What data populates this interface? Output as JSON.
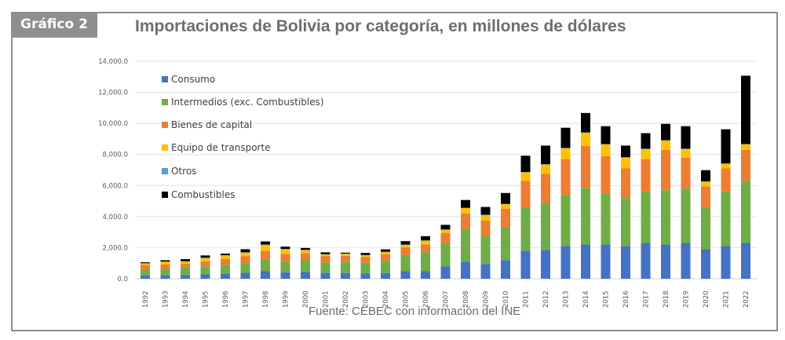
{
  "badge": "Gráfico 2",
  "title": "Importaciones de Bolivia por categoría, en millones de dólares",
  "source": "Fuente: CEBEC con información del INE",
  "colors": {
    "Consumo": "#4472c4",
    "Intermedios (exc. Combustibles)": "#70ad47",
    "Bienes de capital": "#ed7d31",
    "Equipo de transporte": "#ffc000",
    "Otros": "#5b9bd5",
    "Combustibles": "#000000"
  },
  "chart_data": {
    "type": "bar",
    "stacked": true,
    "title": "Importaciones de Bolivia por categoría, en millones de dólares",
    "xlabel": "",
    "ylabel": "",
    "ylim": [
      0,
      14000
    ],
    "yticks": [
      0,
      2000,
      4000,
      6000,
      8000,
      10000,
      12000,
      14000
    ],
    "ytick_labels": [
      "0.0",
      "2,000.0",
      "4,000.0",
      "6,000.0",
      "8,000.0",
      "10,000.0",
      "12,000.0",
      "14,000.0"
    ],
    "grid": true,
    "legend_position": "top-left",
    "categories": [
      "1992",
      "1993",
      "1994",
      "1995",
      "1996",
      "1997",
      "1998",
      "1999",
      "2000",
      "2001",
      "2002",
      "2003",
      "2004",
      "2005",
      "2006",
      "2007",
      "2008",
      "2009",
      "2010",
      "2011",
      "2012",
      "2013",
      "2014",
      "2015",
      "2016",
      "2017",
      "2018",
      "2019",
      "2020",
      "2021",
      "2022"
    ],
    "series": [
      {
        "name": "Consumo",
        "values": [
          200,
          230,
          260,
          280,
          340,
          380,
          500,
          420,
          430,
          390,
          370,
          350,
          370,
          480,
          500,
          800,
          1100,
          950,
          1200,
          1800,
          1850,
          2100,
          2200,
          2200,
          2100,
          2300,
          2200,
          2300,
          1900,
          2100,
          2300
        ]
      },
      {
        "name": "Intermedios (exc. Combustibles)",
        "values": [
          380,
          400,
          450,
          520,
          560,
          580,
          720,
          680,
          760,
          650,
          700,
          680,
          780,
          1050,
          1200,
          1500,
          2100,
          1800,
          2100,
          2800,
          3000,
          3300,
          3650,
          3300,
          3100,
          3300,
          3500,
          3500,
          2650,
          3500,
          4000
        ]
      },
      {
        "name": "Bienes de capital",
        "values": [
          300,
          280,
          250,
          330,
          380,
          480,
          580,
          500,
          450,
          420,
          400,
          380,
          420,
          500,
          500,
          650,
          1000,
          1000,
          1200,
          1700,
          1900,
          2300,
          2700,
          2400,
          1900,
          2100,
          2600,
          2000,
          1400,
          1500,
          2000
        ]
      },
      {
        "name": "Equipo de transporte",
        "values": [
          100,
          180,
          150,
          200,
          220,
          240,
          380,
          300,
          200,
          100,
          130,
          100,
          150,
          150,
          250,
          200,
          350,
          350,
          300,
          550,
          600,
          700,
          850,
          750,
          700,
          650,
          600,
          550,
          300,
          300,
          350
        ]
      },
      {
        "name": "Otros",
        "values": [
          20,
          20,
          20,
          20,
          20,
          20,
          20,
          20,
          20,
          20,
          20,
          20,
          20,
          20,
          20,
          20,
          20,
          20,
          20,
          20,
          20,
          20,
          20,
          20,
          20,
          20,
          20,
          20,
          20,
          20,
          20
        ]
      },
      {
        "name": "Combustibles",
        "values": [
          60,
          80,
          130,
          150,
          100,
          200,
          200,
          150,
          120,
          120,
          60,
          130,
          150,
          220,
          270,
          300,
          500,
          500,
          700,
          1050,
          1200,
          1300,
          1250,
          1150,
          750,
          1000,
          1050,
          1450,
          720,
          2200,
          4400
        ]
      }
    ]
  }
}
